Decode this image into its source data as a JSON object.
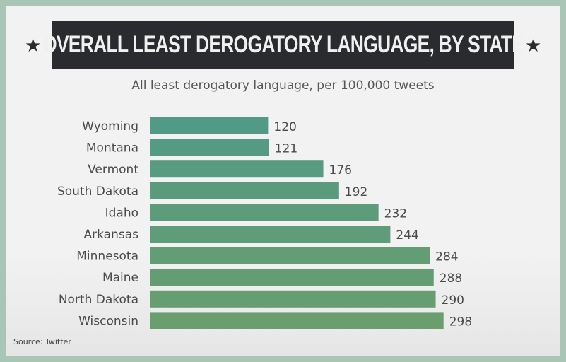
{
  "chart_data": {
    "type": "bar",
    "orientation": "horizontal",
    "title": "OVERALL LEAST DEROGATORY LANGUAGE, BY STATE",
    "subtitle": "All least derogatory language, per 100,000 tweets",
    "categories": [
      "Wyoming",
      "Montana",
      "Vermont",
      "South Dakota",
      "Idaho",
      "Arkansas",
      "Minnesota",
      "Maine",
      "North Dakota",
      "Wisconsin"
    ],
    "values": [
      120,
      121,
      176,
      192,
      232,
      244,
      284,
      288,
      290,
      298
    ],
    "source": "Source: Twitter",
    "grid": false,
    "colors": {
      "start": "#529a86",
      "end": "#6a9e6e",
      "border": "#a8c5b5",
      "title_bg": "#2a2b2e"
    }
  }
}
